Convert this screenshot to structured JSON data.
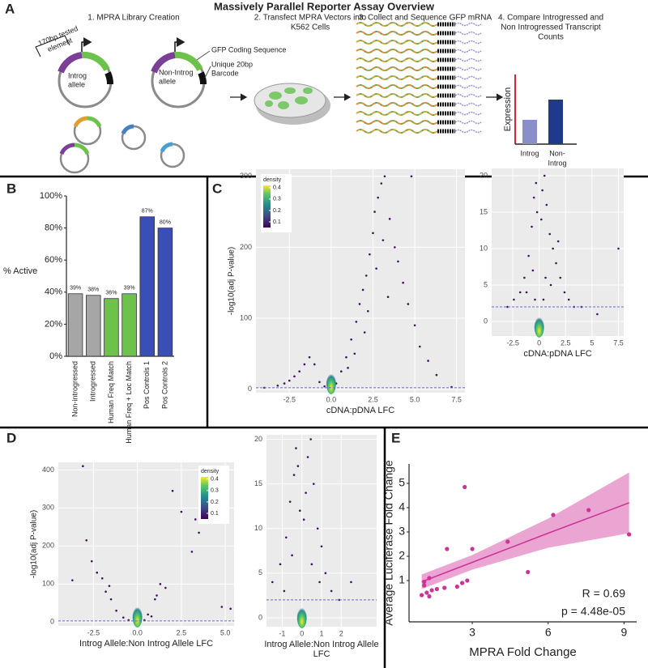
{
  "panel_labels": [
    "A",
    "B",
    "C",
    "D",
    "E"
  ],
  "overview": {
    "title": "Massively Parallel Reporter Assay Overview",
    "steps": [
      [
        "1. MPRA Library Creation"
      ],
      [
        "2. Transfect MPRA Vectors into",
        "K562 Cells"
      ],
      [
        "3. Collect and Sequence GFP mRNA"
      ],
      [
        "4. Compare Introgressed and",
        "Non Introgressed Transcript",
        "Counts"
      ]
    ],
    "element_label": [
      "170bp tested",
      "element"
    ],
    "introg_allele": [
      "Introg",
      "allele"
    ],
    "nonintrog_allele": [
      "Non-Introg",
      "allele"
    ],
    "gfp": "GFP Coding Sequence",
    "barcode": [
      "Unique 20bp",
      "Barcode"
    ],
    "expression": {
      "ylabel": "Expression",
      "categories": [
        [
          "Introg"
        ],
        [
          "Non-",
          "Introg"
        ]
      ]
    }
  },
  "chart_data": [
    {
      "type": "bar",
      "ylabel": "% Active",
      "categories": [
        "Non-introgressed",
        "Introgressed",
        "Human Freq Match",
        "Human Freq + Loc Match",
        "Pos Controls 1",
        "Pos Controls 2"
      ],
      "values": [
        39,
        38,
        36,
        39,
        87,
        80
      ],
      "value_labels": [
        "39%",
        "38%",
        "36%",
        "39%",
        "87%",
        "80%"
      ],
      "colors": [
        "#a6a6a6",
        "#a6a6a6",
        "#6cc24a",
        "#6cc24a",
        "#3a4fb5",
        "#3a4fb5"
      ],
      "ylim": [
        0,
        100
      ],
      "yticks": [
        {
          "value": 0,
          "label": "0%"
        },
        {
          "value": 20,
          "label": "20%"
        },
        {
          "value": 40,
          "label": "40%"
        },
        {
          "value": 60,
          "label": "60%"
        },
        {
          "value": 80,
          "label": "80%"
        },
        {
          "value": 100,
          "label": "100%"
        }
      ],
      "grid": false
    },
    {
      "type": "scatter",
      "xlabel": "cDNA:pDNA LFC",
      "ylabel": "-log10(adj P-value)",
      "x": [
        -4,
        -3.2,
        -2.8,
        -2.5,
        -2.2,
        -1.9,
        -1.6,
        -1.3,
        -1,
        -0.7,
        -0.4,
        0.3,
        0.6,
        0.9,
        1.2,
        1.5,
        1.7,
        1.9,
        2.1,
        2.3,
        2.5,
        2.6,
        2.8,
        3,
        3.2,
        3.5,
        3.8,
        4,
        4.3,
        4.6,
        5,
        5.3,
        5.8,
        6.3,
        7.2,
        2.2,
        2.7,
        3.1,
        1.4,
        1.0,
        2.0,
        3.4,
        4.8
      ],
      "y": [
        2,
        5,
        8,
        12,
        18,
        25,
        35,
        45,
        35,
        10,
        4,
        8,
        25,
        45,
        70,
        95,
        120,
        140,
        160,
        190,
        220,
        250,
        270,
        290,
        300,
        240,
        200,
        180,
        150,
        120,
        90,
        60,
        40,
        20,
        3,
        110,
        170,
        210,
        50,
        30,
        80,
        130,
        300
      ],
      "color": "#40135e",
      "hline": 2,
      "xlim": [
        -4.5,
        8
      ],
      "ylim": [
        -5,
        310
      ],
      "xticks": [
        -2.5,
        {
          "value": 0,
          "label": "0.0"
        },
        2.5,
        {
          "value": 5,
          "label": "5.0"
        },
        7.5
      ],
      "yticks": [
        0,
        100,
        200,
        300
      ],
      "grid": true,
      "background": "#ebebeb",
      "colorbar": {
        "title": "density",
        "ticks": [
          0.1,
          0.2,
          0.3,
          0.4
        ],
        "lim": [
          0.05,
          0.42
        ]
      },
      "legend": "top-left"
    },
    {
      "type": "scatter",
      "xlabel": "cDNA:pDNA LFC",
      "x": [
        -3,
        -2.4,
        -1.8,
        -1.4,
        -1,
        -0.7,
        -0.5,
        -0.3,
        -0.2,
        0.2,
        0.3,
        0.5,
        0.7,
        1,
        1.3,
        1.6,
        2,
        2.4,
        2.8,
        3.3,
        4,
        5.5,
        7.5,
        -0.6,
        0.6,
        -0.4,
        0.4,
        1.1,
        -1.2,
        1.8
      ],
      "y": [
        2,
        3,
        4,
        6,
        9,
        13,
        17,
        19,
        15,
        14,
        18,
        20,
        16,
        12,
        10,
        8,
        6,
        4,
        3,
        2,
        2,
        1,
        10,
        7,
        6,
        3,
        3,
        5,
        4,
        11
      ],
      "color": "#40135e",
      "hline": 2,
      "xlim": [
        -4.5,
        8
      ],
      "ylim": [
        -2,
        21
      ],
      "xticks": [
        -2.5,
        0,
        2.5,
        5,
        7.5
      ],
      "yticks": [
        0,
        5,
        10,
        15,
        20
      ],
      "grid": true,
      "background": "#ebebeb"
    },
    {
      "type": "scatter",
      "xlabel": "Introg Allele:Non Introg Allele LFC",
      "ylabel": "-log10(adj P-value)",
      "x": [
        -3.7,
        -3.1,
        -2.9,
        -2.3,
        -2,
        -1.8,
        -1.5,
        -1.2,
        -0.8,
        -0.5,
        0,
        0.4,
        0.8,
        1,
        1.3,
        1.6,
        2,
        2.5,
        3.1,
        3.3,
        3.5,
        4.8,
        5.3,
        -1.6,
        1.1,
        0.6,
        -2.6
      ],
      "y": [
        110,
        410,
        215,
        130,
        115,
        80,
        60,
        30,
        12,
        5,
        3,
        5,
        15,
        60,
        100,
        90,
        345,
        290,
        185,
        270,
        235,
        40,
        35,
        95,
        70,
        20,
        160
      ],
      "color": "#40135e",
      "hline": 3,
      "xlim": [
        -4.5,
        5.5
      ],
      "ylim": [
        -10,
        420
      ],
      "xticks": [
        -2.5,
        {
          "value": 0,
          "label": "0.0"
        },
        2.5,
        {
          "value": 5,
          "label": "5.0"
        }
      ],
      "yticks": [
        0,
        100,
        200,
        300,
        400
      ],
      "grid": true,
      "background": "#ebebeb",
      "colorbar": {
        "title": "density",
        "ticks": [
          0.1,
          0.2,
          0.3,
          0.4
        ],
        "lim": [
          0.05,
          0.42
        ]
      },
      "legend": "top-right"
    },
    {
      "type": "scatter",
      "xlabel": [
        "Introg Allele:Non Introg Allele",
        "LFC"
      ],
      "x": [
        -1.5,
        -1.1,
        -0.8,
        -0.6,
        -0.4,
        -0.3,
        -0.2,
        -0.1,
        0.1,
        0.2,
        0.3,
        0.45,
        0.6,
        0.8,
        1,
        1.2,
        1.5,
        1.9,
        2.5,
        -0.5,
        0.5,
        -0.9,
        0.9
      ],
      "y": [
        4,
        6,
        9,
        13,
        16,
        19,
        17,
        12,
        11,
        14,
        18,
        20,
        15,
        10,
        8,
        5,
        3,
        2,
        4,
        7,
        6,
        3,
        4
      ],
      "color": "#40135e",
      "hline": 2,
      "xlim": [
        -1.8,
        3.8
      ],
      "ylim": [
        -1,
        20.5
      ],
      "xticks": [
        -1,
        0,
        1,
        2
      ],
      "yticks": [
        0,
        5,
        10,
        15,
        20
      ],
      "grid": true,
      "background": "#ebebeb"
    },
    {
      "type": "scatter",
      "xlabel": "MPRA Fold Change",
      "ylabel": "Average Luciferase Fold Change",
      "x": [
        1.0,
        1.1,
        1.1,
        1.2,
        1.3,
        1.3,
        1.4,
        1.6,
        1.9,
        2.0,
        2.4,
        2.6,
        2.7,
        2.8,
        3.0,
        4.4,
        5.2,
        6.2,
        7.6,
        9.2
      ],
      "y": [
        0.4,
        0.8,
        0.95,
        0.5,
        1.1,
        0.35,
        0.6,
        0.65,
        0.7,
        2.3,
        0.75,
        0.9,
        4.85,
        1.0,
        2.3,
        2.6,
        1.35,
        3.7,
        3.9,
        2.9
      ],
      "color": "#cc3399",
      "fit": {
        "x": [
          1,
          3,
          6,
          9.2
        ],
        "y": [
          0.95,
          1.75,
          2.95,
          4.2
        ],
        "lower": [
          0.65,
          1.45,
          2.35,
          2.95
        ],
        "upper": [
          1.25,
          2.05,
          3.55,
          5.45
        ],
        "color": "#cc3399",
        "band_color": "#e58fc7"
      },
      "annotations": [
        "R = 0.69",
        "p = 4.48e-05"
      ],
      "xlim": [
        0.5,
        9.5
      ],
      "ylim": [
        -0.7,
        5.8
      ],
      "xticks": [
        3,
        6,
        9
      ],
      "yticks": [
        1,
        2,
        3,
        4,
        5
      ],
      "grid": false
    }
  ]
}
